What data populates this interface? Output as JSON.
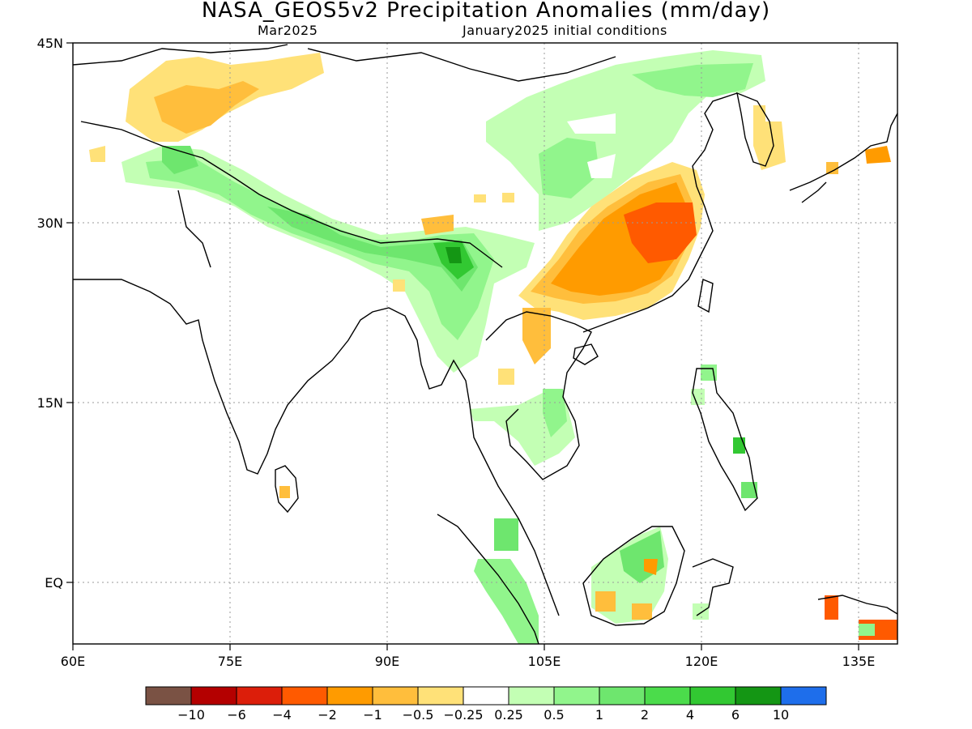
{
  "title": "NASA_GEOS5v2 Precipitation Anomalies (mm/day)",
  "subtitle_left": "Mar2025",
  "subtitle_right": "January2025 initial conditions",
  "axes": {
    "x_ticks": [
      "60E",
      "75E",
      "90E",
      "105E",
      "120E",
      "135E"
    ],
    "y_ticks": [
      "45N",
      "30N",
      "15N",
      "EQ"
    ]
  },
  "colorbar": {
    "colors": [
      "#7a5244",
      "#b40000",
      "#dc1e0a",
      "#ff5a00",
      "#ff9b00",
      "#ffbe3c",
      "#ffe178",
      "#ffffff",
      "#c3ffb4",
      "#91f58c",
      "#6ee66e",
      "#4bdc4b",
      "#32c832",
      "#149614",
      "#1e6eeb"
    ],
    "labels": [
      "−10",
      "−6",
      "−4",
      "−2",
      "−1",
      "−0.5",
      "−0.25",
      "0.25",
      "0.5",
      "1",
      "2",
      "4",
      "6",
      "10"
    ]
  }
}
